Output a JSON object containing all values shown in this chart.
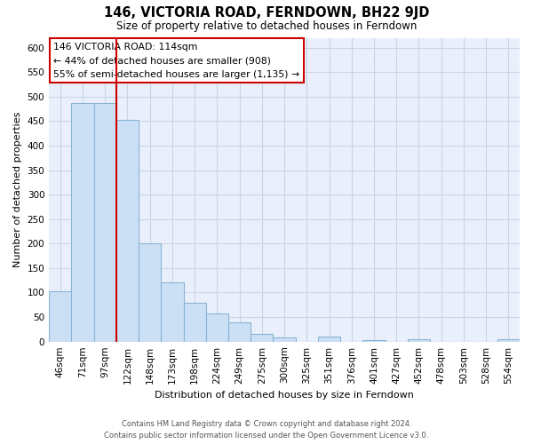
{
  "title": "146, VICTORIA ROAD, FERNDOWN, BH22 9JD",
  "subtitle": "Size of property relative to detached houses in Ferndown",
  "xlabel": "Distribution of detached houses by size in Ferndown",
  "ylabel": "Number of detached properties",
  "bar_labels": [
    "46sqm",
    "71sqm",
    "97sqm",
    "122sqm",
    "148sqm",
    "173sqm",
    "198sqm",
    "224sqm",
    "249sqm",
    "275sqm",
    "300sqm",
    "325sqm",
    "351sqm",
    "376sqm",
    "401sqm",
    "427sqm",
    "452sqm",
    "478sqm",
    "503sqm",
    "528sqm",
    "554sqm"
  ],
  "bar_values": [
    103,
    487,
    487,
    452,
    201,
    120,
    80,
    57,
    40,
    15,
    8,
    0,
    10,
    0,
    3,
    0,
    4,
    0,
    0,
    0,
    5
  ],
  "bar_color": "#cce0f5",
  "bar_edge_color": "#8ab4d4",
  "vline_color": "#cc0000",
  "ylim": [
    0,
    620
  ],
  "yticks": [
    0,
    50,
    100,
    150,
    200,
    250,
    300,
    350,
    400,
    450,
    500,
    550,
    600
  ],
  "annotation_title": "146 VICTORIA ROAD: 114sqm",
  "annotation_line1": "← 44% of detached houses are smaller (908)",
  "annotation_line2": "55% of semi-detached houses are larger (1,135) →",
  "footer_line1": "Contains HM Land Registry data © Crown copyright and database right 2024.",
  "footer_line2": "Contains public sector information licensed under the Open Government Licence v3.0.",
  "grid_color": "#c8d4e8",
  "bg_color": "#eaf0fb"
}
